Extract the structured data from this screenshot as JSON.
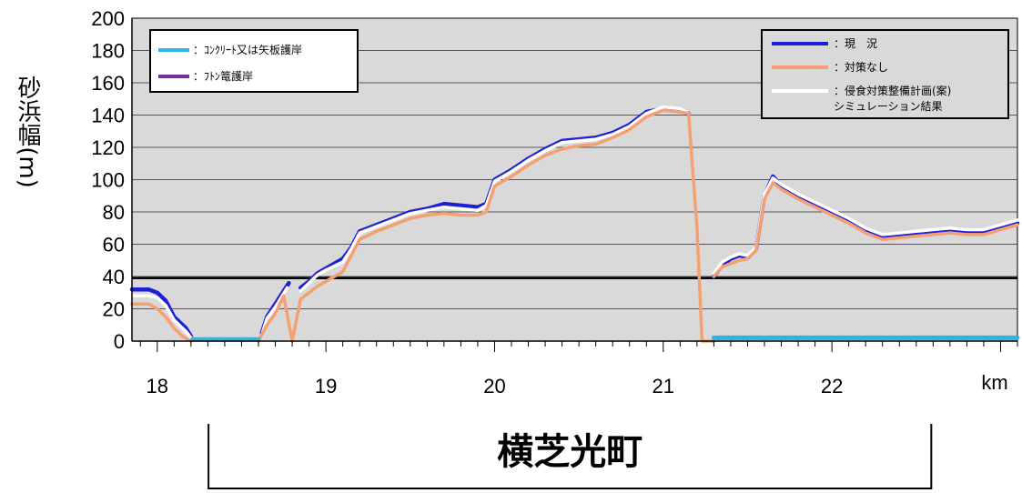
{
  "chart_data": {
    "type": "line",
    "title": "",
    "xlabel": "km",
    "ylabel": "砂浜幅(m)",
    "xlim": [
      17.85,
      23.1
    ],
    "ylim": [
      0,
      200
    ],
    "xticks": [
      18,
      19,
      20,
      21,
      22
    ],
    "yticks": [
      0,
      20,
      40,
      60,
      80,
      100,
      120,
      140,
      160,
      180,
      200
    ],
    "grid": true,
    "legend_left_placement": "top-left",
    "legend_right_placement": "top-right",
    "reference_line": {
      "y": 39
    },
    "region_bracket": {
      "label": "横芝光町",
      "x_start": 18.25,
      "x_end": 22.6
    },
    "series": [
      {
        "name": "現　況",
        "color": "#1f1fd6",
        "legend": "right",
        "segments": [
          [
            [
              17.85,
              32
            ],
            [
              17.95,
              32
            ],
            [
              18.0,
              30
            ],
            [
              18.05,
              25
            ],
            [
              18.1,
              15
            ],
            [
              18.17,
              8
            ],
            [
              18.2,
              3
            ]
          ],
          [
            [
              18.62,
              5
            ],
            [
              18.65,
              15
            ],
            [
              18.7,
              23
            ],
            [
              18.78,
              36
            ]
          ],
          [
            [
              18.85,
              33
            ],
            [
              18.9,
              37
            ],
            [
              18.95,
              42
            ],
            [
              19.0,
              45
            ],
            [
              19.1,
              51
            ],
            [
              19.15,
              58
            ],
            [
              19.2,
              68
            ],
            [
              19.3,
              72
            ],
            [
              19.4,
              76
            ],
            [
              19.5,
              80
            ],
            [
              19.6,
              82
            ],
            [
              19.7,
              85
            ],
            [
              19.8,
              84
            ],
            [
              19.9,
              83
            ],
            [
              19.95,
              85
            ],
            [
              20.0,
              100
            ],
            [
              20.1,
              106
            ],
            [
              20.2,
              113
            ],
            [
              20.3,
              119
            ],
            [
              20.4,
              124
            ],
            [
              20.5,
              125
            ],
            [
              20.6,
              126
            ],
            [
              20.7,
              129
            ],
            [
              20.8,
              134
            ],
            [
              20.9,
              142
            ],
            [
              21.0,
              144
            ],
            [
              21.1,
              143
            ],
            [
              21.15,
              141
            ]
          ],
          [
            [
              21.3,
              40
            ],
            [
              21.35,
              47
            ],
            [
              21.4,
              51
            ],
            [
              21.45,
              53
            ],
            [
              21.5,
              52
            ],
            [
              21.55,
              57
            ],
            [
              21.6,
              90
            ],
            [
              21.65,
              102
            ],
            [
              21.7,
              96
            ],
            [
              21.8,
              90
            ],
            [
              21.9,
              85
            ],
            [
              22.0,
              80
            ],
            [
              22.1,
              75
            ],
            [
              22.2,
              69
            ],
            [
              22.3,
              65
            ],
            [
              22.4,
              66
            ],
            [
              22.5,
              67
            ],
            [
              22.6,
              68
            ],
            [
              22.7,
              68
            ],
            [
              22.8,
              67
            ],
            [
              22.9,
              67
            ],
            [
              23.0,
              70
            ],
            [
              23.1,
              73
            ]
          ]
        ]
      },
      {
        "name": "侵食対策整備計画(案)シミュレーション結果",
        "color": "#ffffff",
        "legend": "right",
        "segments": [
          [
            [
              17.85,
              28
            ],
            [
              17.95,
              28
            ],
            [
              18.0,
              27
            ],
            [
              18.05,
              22
            ],
            [
              18.1,
              13
            ],
            [
              18.17,
              6
            ],
            [
              18.2,
              2
            ]
          ],
          [
            [
              18.62,
              4
            ],
            [
              18.65,
              14
            ],
            [
              18.7,
              21
            ],
            [
              18.77,
              33
            ]
          ],
          [
            [
              18.85,
              31
            ],
            [
              18.9,
              36
            ],
            [
              18.95,
              41
            ],
            [
              19.0,
              44
            ],
            [
              19.1,
              49
            ],
            [
              19.15,
              57
            ],
            [
              19.2,
              67
            ],
            [
              19.3,
              71
            ],
            [
              19.4,
              75
            ],
            [
              19.5,
              79
            ],
            [
              19.6,
              81
            ],
            [
              19.7,
              83
            ],
            [
              19.8,
              82
            ],
            [
              19.9,
              81
            ],
            [
              19.95,
              84
            ],
            [
              20.0,
              99
            ],
            [
              20.1,
              105
            ],
            [
              20.2,
              112
            ],
            [
              20.3,
              118
            ],
            [
              20.4,
              123
            ],
            [
              20.5,
              124
            ],
            [
              20.6,
              125
            ],
            [
              20.7,
              128
            ],
            [
              20.8,
              133
            ],
            [
              20.9,
              141
            ],
            [
              21.0,
              145
            ],
            [
              21.1,
              144
            ],
            [
              21.15,
              141
            ]
          ],
          [
            [
              21.3,
              42
            ],
            [
              21.35,
              49
            ],
            [
              21.4,
              52
            ],
            [
              21.45,
              54
            ],
            [
              21.5,
              53
            ],
            [
              21.55,
              58
            ],
            [
              21.6,
              91
            ],
            [
              21.65,
              101
            ],
            [
              21.7,
              97
            ],
            [
              21.8,
              91
            ],
            [
              21.9,
              86
            ],
            [
              22.0,
              81
            ],
            [
              22.1,
              76
            ],
            [
              22.2,
              70
            ],
            [
              22.3,
              66
            ],
            [
              22.4,
              67
            ],
            [
              22.5,
              68
            ],
            [
              22.6,
              69
            ],
            [
              22.7,
              70
            ],
            [
              22.8,
              69
            ],
            [
              22.9,
              69
            ],
            [
              23.0,
              72
            ],
            [
              23.1,
              75
            ]
          ]
        ]
      },
      {
        "name": "対策なし",
        "color": "#f4a070",
        "legend": "right",
        "segments": [
          [
            [
              17.85,
              23
            ],
            [
              17.95,
              23
            ],
            [
              18.0,
              20
            ],
            [
              18.05,
              15
            ],
            [
              18.1,
              8
            ],
            [
              18.15,
              3
            ],
            [
              18.2,
              0
            ]
          ],
          [
            [
              18.6,
              0
            ],
            [
              18.65,
              10
            ],
            [
              18.7,
              17
            ],
            [
              18.75,
              28
            ],
            [
              18.8,
              0
            ],
            [
              18.85,
              26
            ],
            [
              18.9,
              30
            ],
            [
              18.95,
              34
            ],
            [
              19.0,
              37
            ],
            [
              19.1,
              43
            ],
            [
              19.15,
              53
            ],
            [
              19.2,
              63
            ],
            [
              19.3,
              68
            ],
            [
              19.4,
              72
            ],
            [
              19.5,
              76
            ],
            [
              19.6,
              78
            ],
            [
              19.7,
              79
            ],
            [
              19.8,
              78
            ],
            [
              19.9,
              78
            ],
            [
              19.95,
              80
            ],
            [
              20.0,
              96
            ],
            [
              20.1,
              102
            ],
            [
              20.2,
              109
            ],
            [
              20.3,
              115
            ],
            [
              20.4,
              119
            ],
            [
              20.5,
              121
            ],
            [
              20.6,
              122
            ],
            [
              20.7,
              126
            ],
            [
              20.8,
              131
            ],
            [
              20.9,
              139
            ],
            [
              21.0,
              143
            ],
            [
              21.1,
              142
            ],
            [
              21.15,
              141
            ],
            [
              21.2,
              70
            ],
            [
              21.23,
              0
            ],
            [
              21.3,
              0
            ]
          ],
          [
            [
              21.3,
              40
            ],
            [
              21.35,
              46
            ],
            [
              21.4,
              48
            ],
            [
              21.45,
              50
            ],
            [
              21.5,
              51
            ],
            [
              21.55,
              56
            ],
            [
              21.6,
              88
            ],
            [
              21.65,
              98
            ],
            [
              21.7,
              94
            ],
            [
              21.8,
              88
            ],
            [
              21.9,
              83
            ],
            [
              22.0,
              78
            ],
            [
              22.1,
              73
            ],
            [
              22.2,
              67
            ],
            [
              22.3,
              63
            ],
            [
              22.4,
              64
            ],
            [
              22.5,
              65
            ],
            [
              22.6,
              66
            ],
            [
              22.7,
              67
            ],
            [
              22.8,
              66
            ],
            [
              22.9,
              66
            ],
            [
              23.0,
              69
            ],
            [
              23.1,
              72
            ]
          ]
        ]
      },
      {
        "name": "ｺﾝｸﾘｰﾄ又は矢板護岸",
        "color": "#29b6e6",
        "legend": "left",
        "segments": [
          [
            [
              18.21,
              1
            ],
            [
              18.6,
              1
            ]
          ],
          [
            [
              21.3,
              2
            ],
            [
              23.1,
              2
            ]
          ]
        ]
      },
      {
        "name": "ﾌﾄﾝ篭護岸",
        "color": "#7a2f9a",
        "legend": "left",
        "segments": []
      }
    ]
  },
  "legend_left": [
    {
      "marker": "ｺﾝｸﾘｰﾄ又は矢板護岸",
      "label": "：ｺﾝｸﾘｰﾄ又は矢板護岸",
      "color": "#29b6e6"
    },
    {
      "marker": "ﾌﾄﾝ篭護岸",
      "label": "：ﾌﾄﾝ篭護岸",
      "color": "#7a2f9a"
    }
  ],
  "legend_right": [
    {
      "label": "：現　況",
      "color": "#1f1fd6"
    },
    {
      "label": "：対策なし",
      "color": "#f4a070"
    },
    {
      "label": "：侵食対策整備計画(案)",
      "label2": "シミュレーション結果",
      "color": "#ffffff"
    }
  ]
}
